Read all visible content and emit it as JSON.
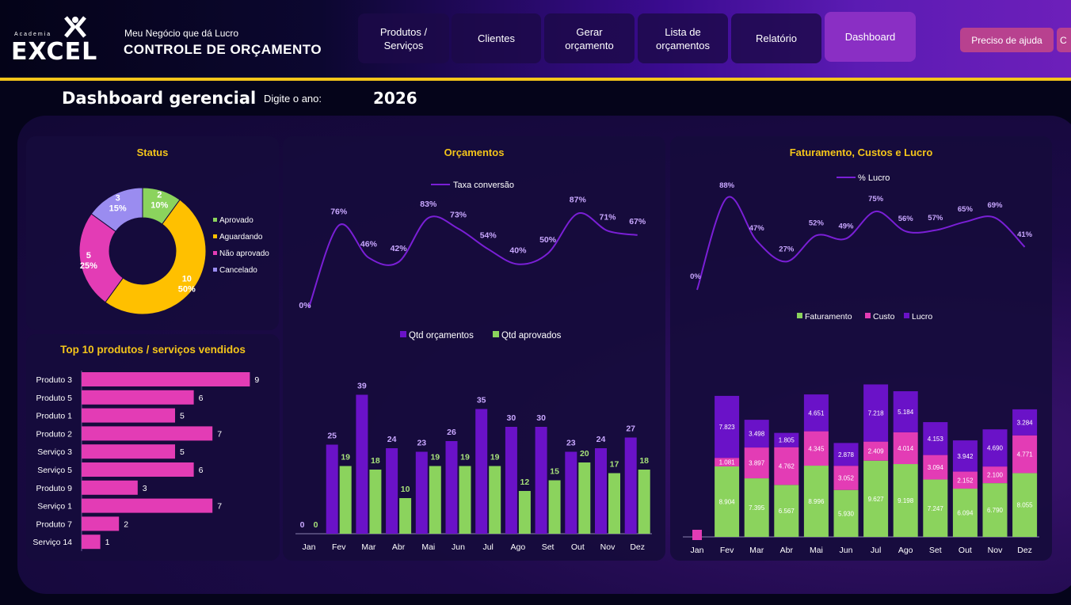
{
  "brand": {
    "small_text": "Academia",
    "big_text": "EXCEL"
  },
  "app": {
    "subtitle": "Meu Negócio que dá Lucro",
    "title": "CONTROLE DE ORÇAMENTO"
  },
  "nav": [
    {
      "label": "Produtos /\nServiços"
    },
    {
      "label": "Clientes"
    },
    {
      "label": "Gerar\norçamento"
    },
    {
      "label": "Lista de\norçamentos"
    },
    {
      "label": "Relatório"
    },
    {
      "label": "Dashboard",
      "active": true
    }
  ],
  "help": {
    "label": "Preciso de ajuda",
    "second_label": "C"
  },
  "page": {
    "title": "Dashboard gerencial",
    "year_label": "Digite o ano:",
    "year_value": "2026"
  },
  "colors": {
    "accent_yellow": "#f4c51a",
    "green": "#8bd35d",
    "magenta": "#e33cb5",
    "purple": "#6a12c8",
    "lavender": "#9a8cf0",
    "orange": "#ffc000",
    "line": "#7a1fd6"
  },
  "charts": {
    "status": {
      "title": "Status",
      "chart_data": {
        "type": "pie",
        "categories": [
          "Aprovado",
          "Aguardando",
          "Não aprovado",
          "Cancelado"
        ],
        "values": [
          2,
          10,
          5,
          3
        ],
        "percent_labels": [
          "10%",
          "50%",
          "25%",
          "15%"
        ],
        "colors": [
          "#8bd35d",
          "#ffc000",
          "#e33cb5",
          "#9a8cf0"
        ],
        "legend": "right"
      }
    },
    "top10": {
      "title": "Top 10 produtos / serviços vendidos",
      "chart_data": {
        "type": "bar",
        "orientation": "horizontal",
        "categories": [
          "Produto 3",
          "Produto 5",
          "Produto 1",
          "Produto 2",
          "Serviço 3",
          "Serviço 5",
          "Produto 9",
          "Serviço 1",
          "Produto 7",
          "Serviço 14"
        ],
        "values": [
          9,
          6,
          5,
          7,
          5,
          6,
          3,
          7,
          2,
          1
        ],
        "color": "#e33cb5"
      }
    },
    "orcamentos": {
      "title": "Orçamentos",
      "line_legend": "Taxa conversão",
      "bar_legend": [
        "Qtd orçamentos",
        "Qtd aprovados"
      ],
      "chart_data": {
        "type": "bar",
        "categories": [
          "Jan",
          "Fev",
          "Mar",
          "Abr",
          "Mai",
          "Jun",
          "Jul",
          "Ago",
          "Set",
          "Out",
          "Nov",
          "Dez"
        ],
        "series": [
          {
            "name": "Qtd orçamentos",
            "values": [
              0,
              25,
              39,
              24,
              23,
              26,
              35,
              30,
              30,
              23,
              24,
              27
            ],
            "color": "#6a12c8"
          },
          {
            "name": "Qtd aprovados",
            "values": [
              0,
              19,
              18,
              10,
              19,
              19,
              19,
              12,
              15,
              20,
              17,
              18
            ],
            "color": "#8bd35d"
          }
        ],
        "line": {
          "name": "Taxa conversão",
          "values": [
            0,
            76,
            46,
            42,
            83,
            73,
            54,
            40,
            50,
            87,
            71,
            67
          ],
          "labels": [
            "0%",
            "76%",
            "46%",
            "42%",
            "83%",
            "73%",
            "54%",
            "40%",
            "50%",
            "87%",
            "71%",
            "67%"
          ]
        },
        "legend": "top"
      }
    },
    "faturamento": {
      "title": "Faturamento, Custos e Lucro",
      "line_legend": "% Lucro",
      "bar_legend": [
        "Faturamento",
        "Custo",
        "Lucro"
      ],
      "chart_data": {
        "type": "bar",
        "stacked": true,
        "categories": [
          "Jan",
          "Fev",
          "Mar",
          "Abr",
          "Mai",
          "Jun",
          "Jul",
          "Ago",
          "Set",
          "Out",
          "Nov",
          "Dez"
        ],
        "series": [
          {
            "name": "Faturamento",
            "values": [
              0,
              8904,
              7395,
              6567,
              8996,
              5930,
              9627,
              9198,
              7247,
              6094,
              6790,
              8055
            ],
            "labels": [
              "",
              "8.904",
              "7.395",
              "6.567",
              "8.996",
              "5.930",
              "9.627",
              "9.198",
              "7.247",
              "6.094",
              "6.790",
              "8.055"
            ],
            "color": "#8bd35d"
          },
          {
            "name": "Custo",
            "values": [
              0,
              1081,
              3897,
              4762,
              4345,
              3052,
              2409,
              4014,
              3094,
              2152,
              2100,
              4771
            ],
            "labels": [
              "",
              "1.081",
              "3.897",
              "4.762",
              "4.345",
              "3.052",
              "2.409",
              "4.014",
              "3.094",
              "2.152",
              "2.100",
              "4.771"
            ],
            "color": "#e33cb5"
          },
          {
            "name": "Lucro",
            "values": [
              0,
              7823,
              3498,
              1805,
              4651,
              2878,
              7218,
              5184,
              4153,
              3942,
              4690,
              3284
            ],
            "labels": [
              "",
              "7.823",
              "3.498",
              "1.805",
              "4.651",
              "2.878",
              "7.218",
              "5.184",
              "4.153",
              "3.942",
              "4.690",
              "3.284"
            ],
            "color": "#6a12c8"
          }
        ],
        "line": {
          "name": "% Lucro",
          "values": [
            0,
            88,
            47,
            27,
            52,
            49,
            75,
            56,
            57,
            65,
            69,
            41
          ],
          "labels": [
            "0%",
            "88%",
            "47%",
            "27%",
            "52%",
            "49%",
            "75%",
            "56%",
            "57%",
            "65%",
            "69%",
            "41%"
          ]
        },
        "legend": "top"
      }
    }
  }
}
